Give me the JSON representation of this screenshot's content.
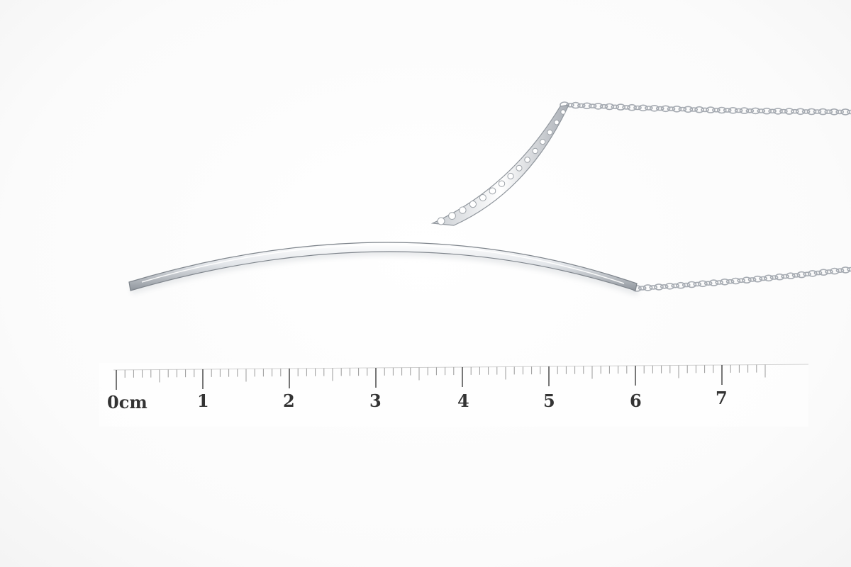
{
  "photo": {
    "subject": "pendant-necklace",
    "colors": {
      "background": "#ffffff",
      "metal": "#d7dade",
      "metal_highlight": "#ffffff",
      "metal_shadow": "#8f959c",
      "chain": "#a6abb2",
      "ruler_ticks": "#9a9a9a",
      "ruler_text": "#333333"
    }
  },
  "ruler": {
    "labels": [
      "0cm",
      "1",
      "2",
      "3",
      "4",
      "5",
      "6",
      "7"
    ],
    "unit": "cm",
    "max_cm": 7.5,
    "minor_divisions_per_cm": 10
  }
}
